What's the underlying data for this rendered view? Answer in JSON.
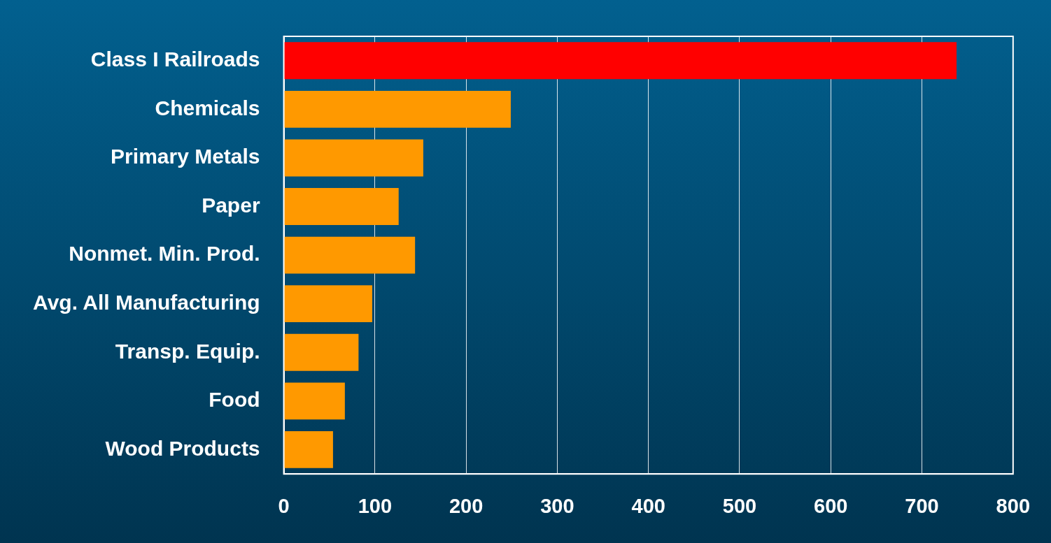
{
  "chart_data": {
    "type": "bar",
    "orientation": "horizontal",
    "categories": [
      "Class I Railroads",
      "Chemicals",
      "Primary Metals",
      "Paper",
      "Nonmet. Min. Prod.",
      "Avg. All Manufacturing",
      "Transp. Equip.",
      "Food",
      "Wood Products"
    ],
    "values": [
      738,
      249,
      153,
      126,
      144,
      97,
      82,
      67,
      54
    ],
    "colors": [
      "#ff0000",
      "#ff9900",
      "#ff9900",
      "#ff9900",
      "#ff9900",
      "#ff9900",
      "#ff9900",
      "#ff9900",
      "#ff9900"
    ],
    "xlim": [
      0,
      800
    ],
    "xticks": [
      0,
      100,
      200,
      300,
      400,
      500,
      600,
      700,
      800
    ],
    "grid": "x",
    "legend": false
  }
}
